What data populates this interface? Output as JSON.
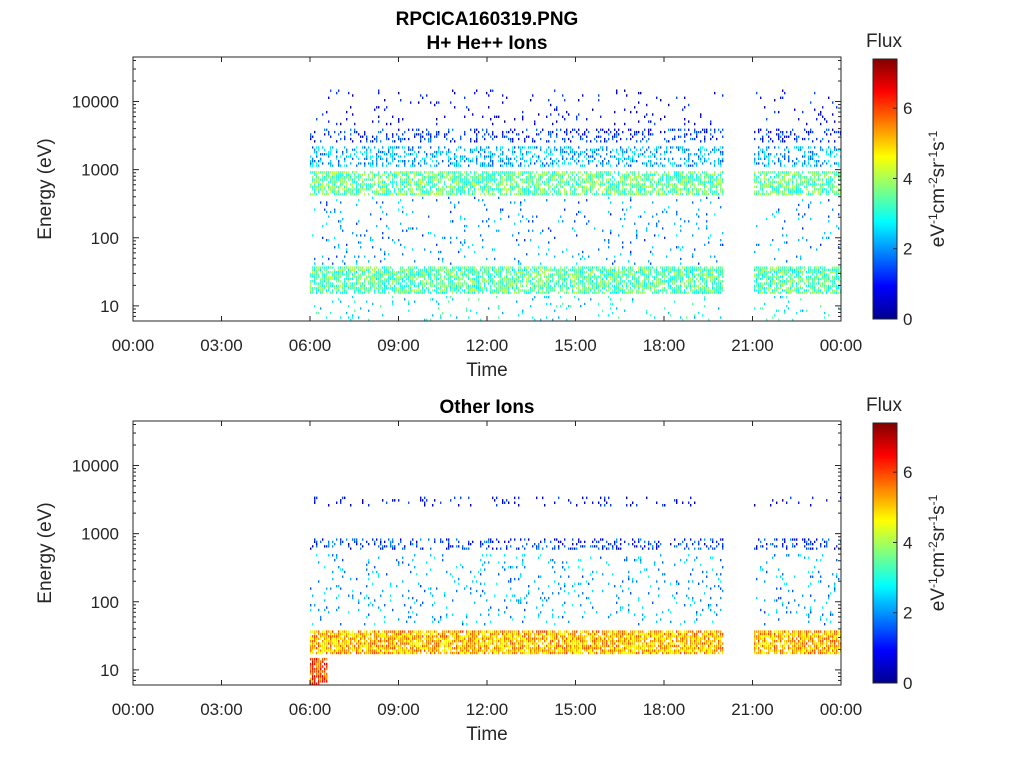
{
  "figure": {
    "title_line1": "RPCICA160319.PNG"
  },
  "colormap": [
    "#00008f",
    "#0000ff",
    "#0080ff",
    "#00ffff",
    "#80ff80",
    "#ffff00",
    "#ff8000",
    "#ff0000",
    "#800000"
  ],
  "chart_data": [
    {
      "type": "heatmap",
      "title": "H+ He++ Ions",
      "xlabel": "Time",
      "ylabel": "Energy (eV)",
      "x_ticks": [
        "00:00",
        "03:00",
        "06:00",
        "09:00",
        "12:00",
        "15:00",
        "18:00",
        "21:00",
        "00:00"
      ],
      "x_range_hours": [
        0,
        24
      ],
      "y_scale": "log",
      "y_ticks": [
        "10",
        "100",
        "1000",
        "10000"
      ],
      "y_range_eV": [
        6,
        45000
      ],
      "colorbar": {
        "label": "Flux",
        "units": "eV⁻¹cm⁻²sr⁻¹s⁻¹",
        "ticks": [
          "0",
          "2",
          "4",
          "6"
        ],
        "range": [
          0,
          7.4
        ]
      },
      "data_gaps_hours": [
        [
          0,
          6.0
        ],
        [
          20.0,
          21.0
        ]
      ],
      "bands": [
        {
          "name_e": "~25 eV",
          "e_min": 15,
          "e_max": 38,
          "t_start": 6.0,
          "t_end": 24.0,
          "flux": 3.4,
          "density": 0.75
        },
        {
          "name_e": "~650 eV",
          "e_min": 420,
          "e_max": 950,
          "t_start": 6.0,
          "t_end": 24.0,
          "flux": 3.5,
          "density": 0.7
        },
        {
          "name_e": "~1500 eV",
          "e_min": 1100,
          "e_max": 2200,
          "t_start": 6.0,
          "t_end": 24.0,
          "flux": 2.2,
          "density": 0.35
        },
        {
          "name_e": "~3000 eV",
          "e_min": 2500,
          "e_max": 4000,
          "t_start": 6.0,
          "t_end": 24.0,
          "flux": 1.2,
          "density": 0.25
        },
        {
          "name_e": "sparse high",
          "e_min": 4500,
          "e_max": 15000,
          "t_start": 6.0,
          "t_end": 24.0,
          "flux": 0.8,
          "density": 0.05
        },
        {
          "name_e": "sparse mid",
          "e_min": 40,
          "e_max": 400,
          "t_start": 6.0,
          "t_end": 24.0,
          "flux": 2.0,
          "density": 0.05
        },
        {
          "name_e": "low edge",
          "e_min": 6,
          "e_max": 14,
          "t_start": 6.0,
          "t_end": 24.0,
          "flux": 2.8,
          "density": 0.06
        }
      ]
    },
    {
      "type": "heatmap",
      "title": "Other Ions",
      "xlabel": "Time",
      "ylabel": "Energy (eV)",
      "x_ticks": [
        "00:00",
        "03:00",
        "06:00",
        "09:00",
        "12:00",
        "15:00",
        "18:00",
        "21:00",
        "00:00"
      ],
      "x_range_hours": [
        0,
        24
      ],
      "y_scale": "log",
      "y_ticks": [
        "10",
        "100",
        "1000",
        "10000"
      ],
      "y_range_eV": [
        6,
        45000
      ],
      "colorbar": {
        "label": "Flux",
        "units": "eV⁻¹cm⁻²sr⁻¹s⁻¹",
        "ticks": [
          "0",
          "2",
          "4",
          "6"
        ],
        "range": [
          0,
          7.4
        ]
      },
      "data_gaps_hours": [
        [
          0,
          6.0
        ],
        [
          20.0,
          21.0
        ]
      ],
      "bands": [
        {
          "name_e": "~25 eV",
          "e_min": 17,
          "e_max": 38,
          "t_start": 6.0,
          "t_end": 24.0,
          "flux": 5.2,
          "density": 0.85
        },
        {
          "name_e": "~700 eV",
          "e_min": 580,
          "e_max": 850,
          "t_start": 6.0,
          "t_end": 24.0,
          "flux": 1.3,
          "density": 0.25
        },
        {
          "name_e": "~3000 eV",
          "e_min": 2500,
          "e_max": 3500,
          "t_start": 6.0,
          "t_end": 24.0,
          "flux": 0.9,
          "density": 0.12
        },
        {
          "name_e": "sparse mid",
          "e_min": 45,
          "e_max": 500,
          "t_start": 6.0,
          "t_end": 24.0,
          "flux": 2.2,
          "density": 0.07
        },
        {
          "name_e": "low edge",
          "e_min": 6,
          "e_max": 15,
          "t_start": 6.0,
          "t_end": 6.6,
          "flux": 6.0,
          "density": 0.8
        }
      ]
    }
  ]
}
